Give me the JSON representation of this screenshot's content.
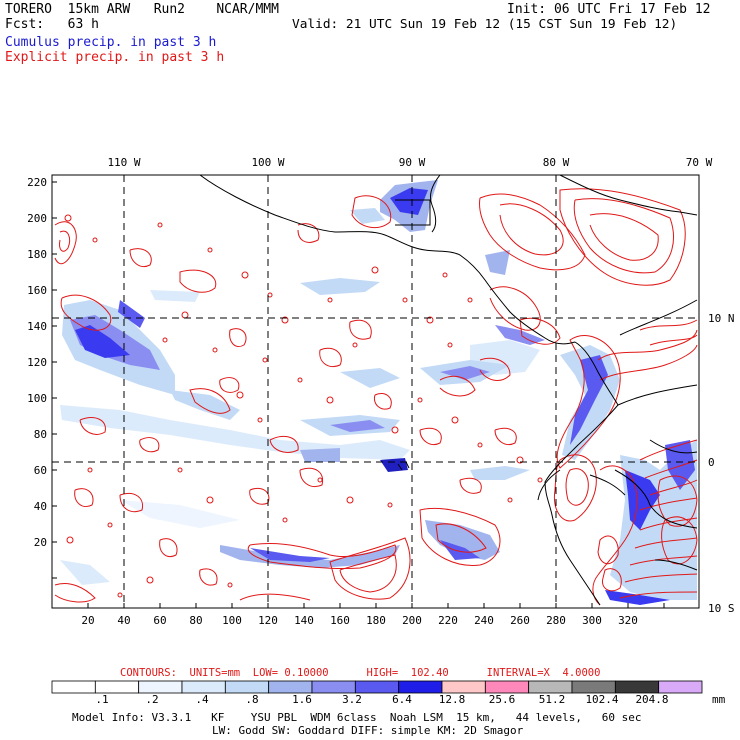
{
  "header": {
    "model": "TORERO  15km ARW   Run2    NCAR/MMM",
    "init": "Init: 06 UTC Fri 17 Feb 12",
    "fcst": "Fcst:   63 h",
    "valid": "Valid: 21 UTC Sun 19 Feb 12 (15 CST Sun 19 Feb 12)",
    "field1": "Cumulus precip. in past 3 h",
    "field2": "Explicit precip. in past 3 h"
  },
  "map": {
    "lon_labels": [
      "110 W",
      "100 W",
      "90 W",
      "80 W",
      "70 W"
    ],
    "lat_labels": [
      "10 N",
      "0",
      "10 S"
    ],
    "y_ticks": [
      "220",
      "200",
      "180",
      "160",
      "140",
      "120",
      "100",
      "80",
      "60",
      "40",
      "20"
    ],
    "x_ticks": [
      "20",
      "40",
      "60",
      "80",
      "100",
      "120",
      "140",
      "160",
      "180",
      "200",
      "220",
      "240",
      "260",
      "280",
      "300",
      "320"
    ],
    "colors": {
      "explicit": "#e01818",
      "coast": "#000000",
      "grid": "#000000"
    }
  },
  "contours": {
    "text": "CONTOURS:  UNITS=mm  LOW= 0.10000      HIGH=  102.40      INTERVAL=X  4.0000"
  },
  "colorbar": {
    "labels": [
      ".1",
      ".2",
      ".4",
      ".8",
      "1.6",
      "3.2",
      "6.4",
      "12.8",
      "25.6",
      "51.2",
      "102.4",
      "204.8"
    ],
    "unit": "mm",
    "colors": [
      "#ffffff",
      "#ffffff",
      "#eef5ff",
      "#dcebfb",
      "#c2daf6",
      "#a2b4ee",
      "#8a8ef0",
      "#5a5af0",
      "#1e1ee8",
      "#ffc8c8",
      "#ff88bb",
      "#b8b8b8",
      "#7a7a7a",
      "#383838",
      "#d8aaf8"
    ]
  },
  "footer": {
    "line1": "Model Info: V3.3.1   KF    YSU PBL  WDM 6class  Noah LSM  15 km,   44 levels,   60 sec",
    "line2": "LW: Godd SW: Goddard DIFF: simple KM: 2D Smagor"
  }
}
